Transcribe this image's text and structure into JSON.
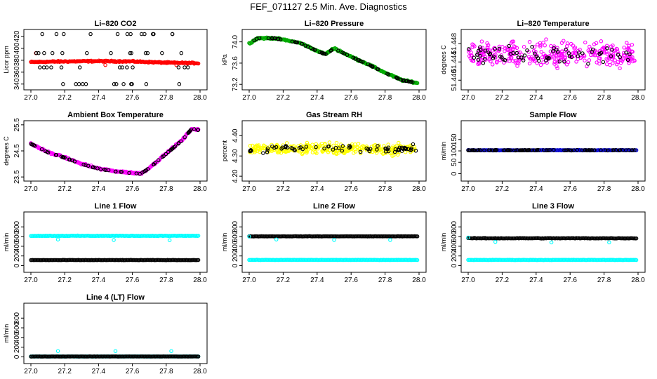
{
  "figure_title": "FEF_071127  2.5 Min. Ave. Diagnostics",
  "colors": {
    "red": "#ff0000",
    "black": "#000000",
    "green": "#00aa00",
    "magenta": "#ff00ff",
    "yellow": "#ffff00",
    "blue": "#0000cc",
    "cyan": "#00ffff"
  },
  "chart_data": [
    {
      "id": "co2",
      "type": "scatter",
      "title": "Li–820 CO2",
      "ylabel": "Licor ppm",
      "xlim": [
        27.0,
        28.0
      ],
      "ylim": [
        335,
        427
      ],
      "xticks": [
        "27.0",
        "27.2",
        "27.4",
        "27.6",
        "27.8",
        "28.0"
      ],
      "xtick_values": [
        27.0,
        27.2,
        27.4,
        27.6,
        27.8,
        28.0
      ],
      "yticks": [
        "340",
        "360",
        "380",
        "400",
        "420"
      ],
      "ytick_values": [
        340,
        360,
        380,
        400,
        420
      ],
      "series": [
        {
          "name": "primary",
          "color": "red",
          "pattern": "band",
          "x": [
            27.0,
            27.2,
            27.4,
            27.6,
            27.8,
            28.0
          ],
          "y": [
            377,
            378,
            378.5,
            378,
            376,
            375
          ],
          "spread": 1.5
        },
        {
          "name": "outliers",
          "color": "red",
          "pattern": "points",
          "x": [
            27.03,
            27.44,
            27.86
          ],
          "y": [
            392,
            372,
            372
          ]
        },
        {
          "name": "check",
          "color": "black",
          "pattern": "sparse",
          "levels": [
            340,
            368,
            392,
            424
          ]
        }
      ]
    },
    {
      "id": "pressure",
      "type": "scatter",
      "title": "Li–820 Pressure",
      "ylabel": "kPa",
      "xlim": [
        27.0,
        28.0
      ],
      "ylim": [
        73.15,
        74.18
      ],
      "xticks": [
        "27.0",
        "27.2",
        "27.4",
        "27.6",
        "27.8",
        "28.0"
      ],
      "xtick_values": [
        27.0,
        27.2,
        27.4,
        27.6,
        27.8,
        28.0
      ],
      "yticks": [
        "73.2",
        "73.6",
        "74.0"
      ],
      "ytick_values": [
        73.2,
        73.6,
        74.0
      ],
      "series": [
        {
          "name": "primary",
          "color": "green",
          "pattern": "band",
          "x": [
            27.0,
            27.05,
            27.15,
            27.3,
            27.4,
            27.45,
            27.5,
            27.6,
            27.7,
            27.8,
            27.9,
            28.0
          ],
          "y": [
            73.97,
            74.07,
            74.07,
            73.98,
            73.83,
            73.77,
            73.88,
            73.72,
            73.58,
            73.42,
            73.28,
            73.22
          ],
          "spread": 0.02
        },
        {
          "name": "check",
          "color": "black",
          "pattern": "follow",
          "spread": 0.015
        }
      ]
    },
    {
      "id": "temp",
      "type": "scatter",
      "title": "Li–820 Temperature",
      "ylabel": "degrees C",
      "xlim": [
        27.0,
        28.0
      ],
      "ylim": [
        51.4385,
        51.4505
      ],
      "xticks": [
        "27.0",
        "27.2",
        "27.4",
        "27.6",
        "27.8",
        "28.0"
      ],
      "xtick_values": [
        27.0,
        27.2,
        27.4,
        27.6,
        27.8,
        28.0
      ],
      "yticks": [
        "51.440",
        "51.444",
        "51.448"
      ],
      "ytick_values": [
        51.44,
        51.444,
        51.448
      ],
      "series": [
        {
          "name": "primary",
          "color": "magenta",
          "pattern": "noise",
          "center": 51.4455,
          "spread": 0.005
        },
        {
          "name": "check",
          "color": "black",
          "pattern": "noise_sparse",
          "center": 51.4455,
          "spread": 0.004
        }
      ]
    },
    {
      "id": "ambient",
      "type": "scatter",
      "title": "Ambient Box Temperature",
      "ylabel": "degrees C",
      "xlim": [
        27.0,
        28.0
      ],
      "ylim": [
        23.45,
        25.55
      ],
      "xticks": [
        "27.0",
        "27.2",
        "27.4",
        "27.6",
        "27.8",
        "28.0"
      ],
      "xtick_values": [
        27.0,
        27.2,
        27.4,
        27.6,
        27.8,
        28.0
      ],
      "yticks": [
        "23.5",
        "24.5",
        "25.5"
      ],
      "ytick_values": [
        23.5,
        24.5,
        25.5
      ],
      "series": [
        {
          "name": "primary",
          "color": "magenta",
          "pattern": "band",
          "x": [
            27.0,
            27.1,
            27.2,
            27.3,
            27.4,
            27.5,
            27.6,
            27.65,
            27.7,
            27.8,
            27.9,
            27.95,
            28.0
          ],
          "y": [
            24.78,
            24.45,
            24.25,
            24.0,
            23.82,
            23.72,
            23.66,
            23.63,
            23.85,
            24.4,
            24.95,
            25.35,
            25.3
          ],
          "spread": 0.05
        },
        {
          "name": "check",
          "color": "black",
          "pattern": "follow",
          "spread": 0.05
        }
      ]
    },
    {
      "id": "rh",
      "type": "scatter",
      "title": "Gas Stream RH",
      "ylabel": "percent",
      "xlim": [
        27.0,
        28.0
      ],
      "ylim": [
        4.19,
        4.46
      ],
      "xticks": [
        "27.0",
        "27.2",
        "27.4",
        "27.6",
        "27.8",
        "28.0"
      ],
      "xtick_values": [
        27.0,
        27.2,
        27.4,
        27.6,
        27.8,
        28.0
      ],
      "yticks": [
        "4.20",
        "4.30",
        "4.40"
      ],
      "ytick_values": [
        4.2,
        4.3,
        4.4
      ],
      "series": [
        {
          "name": "primary",
          "color": "yellow",
          "pattern": "noise",
          "center": 4.335,
          "spread": 0.05
        },
        {
          "name": "check",
          "color": "black",
          "pattern": "noise_sparse",
          "center": 4.335,
          "spread": 0.04
        }
      ]
    },
    {
      "id": "sample",
      "type": "scatter",
      "title": "Sample Flow",
      "ylabel": "ml/min",
      "xlim": [
        27.0,
        28.0
      ],
      "ylim": [
        -20,
        220
      ],
      "xticks": [
        "27.0",
        "27.2",
        "27.4",
        "27.6",
        "27.8",
        "28.0"
      ],
      "xtick_values": [
        27.0,
        27.2,
        27.4,
        27.6,
        27.8,
        28.0
      ],
      "yticks": [
        "0",
        "50",
        "100",
        "150"
      ],
      "ytick_values": [
        0,
        50,
        100,
        150
      ],
      "series": [
        {
          "name": "primary",
          "color": "blue",
          "pattern": "flat",
          "level": 103,
          "spread": 1.5
        },
        {
          "name": "check",
          "color": "black",
          "pattern": "flat_sparse",
          "level": 103,
          "spread": 1.5
        }
      ]
    },
    {
      "id": "line1",
      "type": "scatter",
      "title": "Line 1 Flow",
      "ylabel": "ml/min",
      "xlim": [
        27.0,
        28.0
      ],
      "ylim": [
        -80,
        1050
      ],
      "xticks": [
        "27.0",
        "27.2",
        "27.4",
        "27.6",
        "27.8",
        "28.0"
      ],
      "xtick_values": [
        27.0,
        27.2,
        27.4,
        27.6,
        27.8,
        28.0
      ],
      "yticks": [
        "0",
        "200",
        "400",
        "600",
        "800"
      ],
      "ytick_values": [
        0,
        200,
        400,
        600,
        800
      ],
      "series": [
        {
          "name": "primary",
          "color": "cyan",
          "pattern": "flat",
          "level": 615,
          "spread": 8
        },
        {
          "name": "check",
          "color": "black",
          "pattern": "flat",
          "level": 115,
          "spread": 5
        },
        {
          "name": "outliers",
          "color": "cyan",
          "pattern": "points",
          "x": [
            27.16,
            27.49,
            27.82
          ],
          "y": [
            540,
            530,
            525
          ]
        }
      ]
    },
    {
      "id": "line2",
      "type": "scatter",
      "title": "Line 2 Flow",
      "ylabel": "ml/min",
      "xlim": [
        27.0,
        28.0
      ],
      "ylim": [
        -80,
        1050
      ],
      "xticks": [
        "27.0",
        "27.2",
        "27.4",
        "27.6",
        "27.8",
        "28.0"
      ],
      "xtick_values": [
        27.0,
        27.2,
        27.4,
        27.6,
        27.8,
        28.0
      ],
      "yticks": [
        "0",
        "200",
        "400",
        "600",
        "800"
      ],
      "ytick_values": [
        0,
        200,
        400,
        600,
        800
      ],
      "series": [
        {
          "name": "primary",
          "color": "cyan",
          "pattern": "flat",
          "level": 118,
          "spread": 5
        },
        {
          "name": "check",
          "color": "black",
          "pattern": "flat",
          "level": 605,
          "spread": 5
        },
        {
          "name": "outliers",
          "color": "cyan",
          "pattern": "points",
          "x": [
            27.0,
            27.16,
            27.5,
            27.83
          ],
          "y": [
            600,
            540,
            530,
            530
          ]
        }
      ]
    },
    {
      "id": "line3",
      "type": "scatter",
      "title": "Line 3 Flow",
      "ylabel": "ml/min",
      "xlim": [
        27.0,
        28.0
      ],
      "ylim": [
        -80,
        1050
      ],
      "xticks": [
        "27.0",
        "27.2",
        "27.4",
        "27.6",
        "27.8",
        "28.0"
      ],
      "xtick_values": [
        27.0,
        27.2,
        27.4,
        27.6,
        27.8,
        28.0
      ],
      "yticks": [
        "0",
        "200",
        "400",
        "600",
        "800"
      ],
      "ytick_values": [
        0,
        200,
        400,
        600,
        800
      ],
      "series": [
        {
          "name": "primary",
          "color": "cyan",
          "pattern": "flat",
          "level": 118,
          "spread": 6
        },
        {
          "name": "check",
          "color": "black",
          "pattern": "flat",
          "level": 565,
          "spread": 8
        },
        {
          "name": "outliers",
          "color": "cyan",
          "pattern": "points",
          "x": [
            27.0,
            27.16,
            27.49,
            27.83
          ],
          "y": [
            580,
            490,
            480,
            480
          ]
        }
      ]
    },
    {
      "id": "line4",
      "type": "scatter",
      "title": "Line 4 (LT) Flow",
      "ylabel": "ml/min",
      "xlim": [
        27.0,
        28.0
      ],
      "ylim": [
        -80,
        1050
      ],
      "xticks": [
        "27.0",
        "27.2",
        "27.4",
        "27.6",
        "27.8",
        "28.0"
      ],
      "xtick_values": [
        27.0,
        27.2,
        27.4,
        27.6,
        27.8,
        28.0
      ],
      "yticks": [
        "0",
        "200",
        "400",
        "600",
        "800"
      ],
      "ytick_values": [
        0,
        200,
        400,
        600,
        800
      ],
      "series": [
        {
          "name": "primary",
          "color": "cyan",
          "pattern": "flat",
          "level": 8,
          "spread": 3
        },
        {
          "name": "check",
          "color": "black",
          "pattern": "flat",
          "level": 8,
          "spread": 3
        },
        {
          "name": "outliers",
          "color": "cyan",
          "pattern": "points",
          "x": [
            27.16,
            27.5,
            27.83
          ],
          "y": [
            120,
            120,
            120
          ]
        }
      ]
    }
  ]
}
